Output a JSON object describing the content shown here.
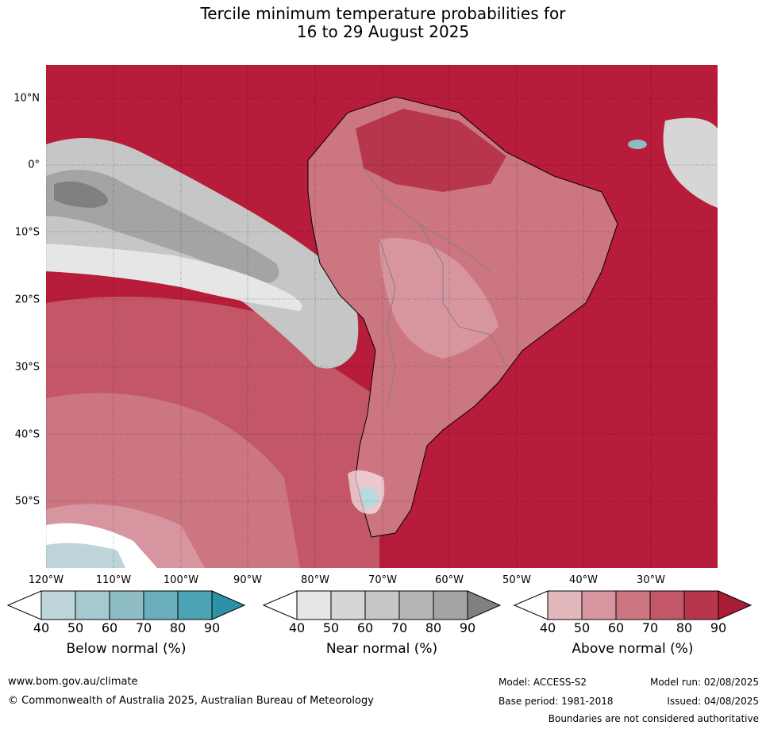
{
  "title": {
    "line1": "Tercile minimum temperature probabilities for",
    "line2": "16 to 29 August 2025"
  },
  "map": {
    "lat_labels": [
      "10°N",
      "0°",
      "10°S",
      "20°S",
      "30°S",
      "40°S",
      "50°S"
    ],
    "lon_labels": [
      "120°W",
      "110°W",
      "100°W",
      "90°W",
      "80°W",
      "70°W",
      "60°W",
      "50°W",
      "40°W",
      "30°W"
    ],
    "dominant_color": "#b71c3a"
  },
  "colorbars": [
    {
      "label": "Below normal (%)",
      "ticks": [
        "40",
        "50",
        "60",
        "70",
        "80",
        "90"
      ],
      "colors": [
        "#ffffff",
        "#bdd4da",
        "#a6c8cf",
        "#8dbcc5",
        "#6aaebb",
        "#4ba3b3",
        "#2f91a5"
      ]
    },
    {
      "label": "Near normal (%)",
      "ticks": [
        "40",
        "50",
        "60",
        "70",
        "80",
        "90"
      ],
      "colors": [
        "#ffffff",
        "#e6e6e6",
        "#d6d6d6",
        "#c6c6c6",
        "#b6b6b6",
        "#a4a4a4",
        "#808080"
      ]
    },
    {
      "label": "Above normal (%)",
      "ticks": [
        "40",
        "50",
        "60",
        "70",
        "80",
        "90"
      ],
      "colors": [
        "#ffffff",
        "#e3b8bd",
        "#d7969f",
        "#cc7682",
        "#c35768",
        "#b8364b",
        "#a81c35"
      ]
    }
  ],
  "footer": {
    "website": "www.bom.gov.au/climate",
    "copyright": "© Commonwealth of Australia 2025, Australian Bureau of Meteorology",
    "model": "Model: ACCESS-S2",
    "model_run": "Model run: 02/08/2025",
    "base_period": "Base period: 1981-2018",
    "issued": "Issued: 04/08/2025",
    "disclaimer": "Boundaries are not considered authoritative"
  }
}
